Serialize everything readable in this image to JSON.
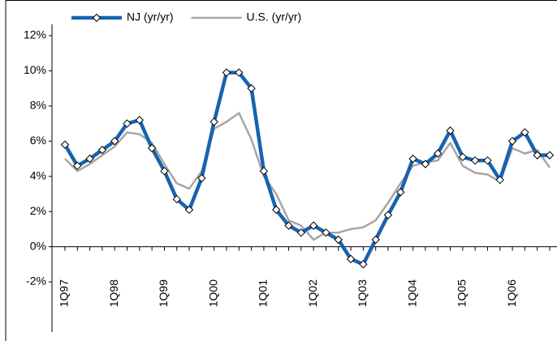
{
  "chart_data": {
    "type": "line",
    "categories": [
      "1Q97",
      null,
      null,
      null,
      "1Q98",
      null,
      null,
      null,
      "1Q99",
      null,
      null,
      null,
      "1Q00",
      null,
      null,
      null,
      "1Q01",
      null,
      null,
      null,
      "1Q02",
      null,
      null,
      null,
      "1Q03",
      null,
      null,
      null,
      "1Q04",
      null,
      null,
      null,
      "1Q05",
      null,
      null,
      null,
      "1Q06",
      null,
      null,
      null
    ],
    "series": [
      {
        "name": "NJ (yr/yr)",
        "color": "#1862b0",
        "marker": "diamond",
        "values": [
          5.8,
          4.6,
          5.0,
          5.5,
          6.0,
          7.0,
          7.2,
          5.6,
          4.3,
          2.7,
          2.1,
          3.9,
          7.1,
          9.9,
          9.9,
          9.0,
          4.3,
          2.1,
          1.2,
          0.8,
          1.2,
          0.8,
          0.4,
          -0.7,
          -1.0,
          0.4,
          1.8,
          3.1,
          5.0,
          4.7,
          5.3,
          6.6,
          5.1,
          4.9,
          4.9,
          3.8,
          6.0,
          6.5,
          5.2,
          5.2
        ]
      },
      {
        "name": "U.S. (yr/yr)",
        "color": "#a6a6a6",
        "values": [
          5.0,
          4.3,
          4.7,
          5.2,
          5.7,
          6.5,
          6.4,
          5.9,
          4.7,
          3.6,
          3.3,
          4.3,
          6.7,
          7.1,
          7.6,
          6.1,
          4.0,
          3.0,
          1.5,
          1.2,
          0.4,
          0.8,
          0.8,
          1.0,
          1.1,
          1.5,
          2.5,
          3.6,
          4.6,
          4.8,
          4.9,
          5.9,
          4.6,
          4.2,
          4.1,
          3.7,
          5.6,
          5.3,
          5.5,
          4.5
        ]
      }
    ],
    "ylim": [
      -2,
      12
    ],
    "yticks": [
      {
        "value": -2,
        "label": "-2%"
      },
      {
        "value": 0,
        "label": "0%"
      },
      {
        "value": 2,
        "label": "2%"
      },
      {
        "value": 4,
        "label": "4%"
      },
      {
        "value": 6,
        "label": "6%"
      },
      {
        "value": 8,
        "label": "8%"
      },
      {
        "value": 10,
        "label": "10%"
      },
      {
        "value": 12,
        "label": "12%"
      }
    ],
    "grid": false,
    "legend": "top"
  }
}
